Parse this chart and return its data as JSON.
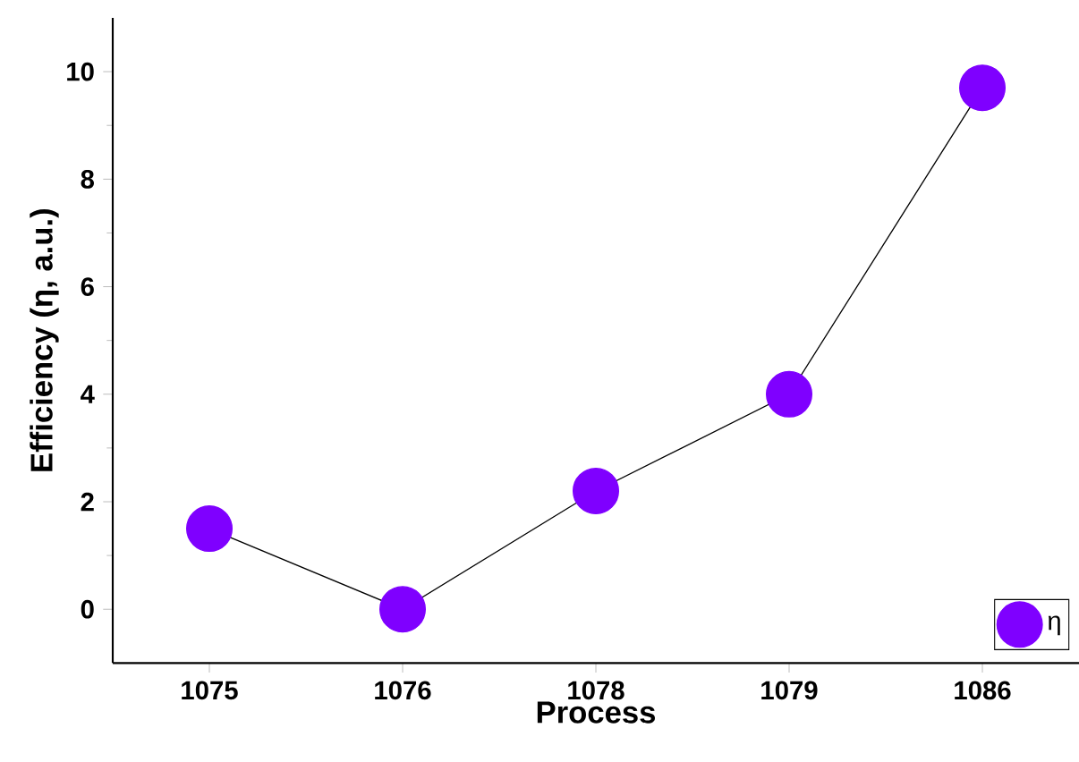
{
  "chart_data": {
    "type": "line",
    "xlabel": "Process",
    "ylabel": "Efficiency (η, a.u.)",
    "categories": [
      "1075",
      "1076",
      "1078",
      "1079",
      "1086"
    ],
    "series": [
      {
        "name": "η",
        "color": "#7f00ff",
        "values": [
          1.5,
          0,
          2.2,
          4.0,
          9.7
        ]
      }
    ],
    "ylim": [
      -1,
      11
    ],
    "yticks": [
      0,
      2,
      4,
      6,
      8,
      10
    ],
    "legend": "bottom right",
    "marker": "circle",
    "line_style": "solid"
  }
}
